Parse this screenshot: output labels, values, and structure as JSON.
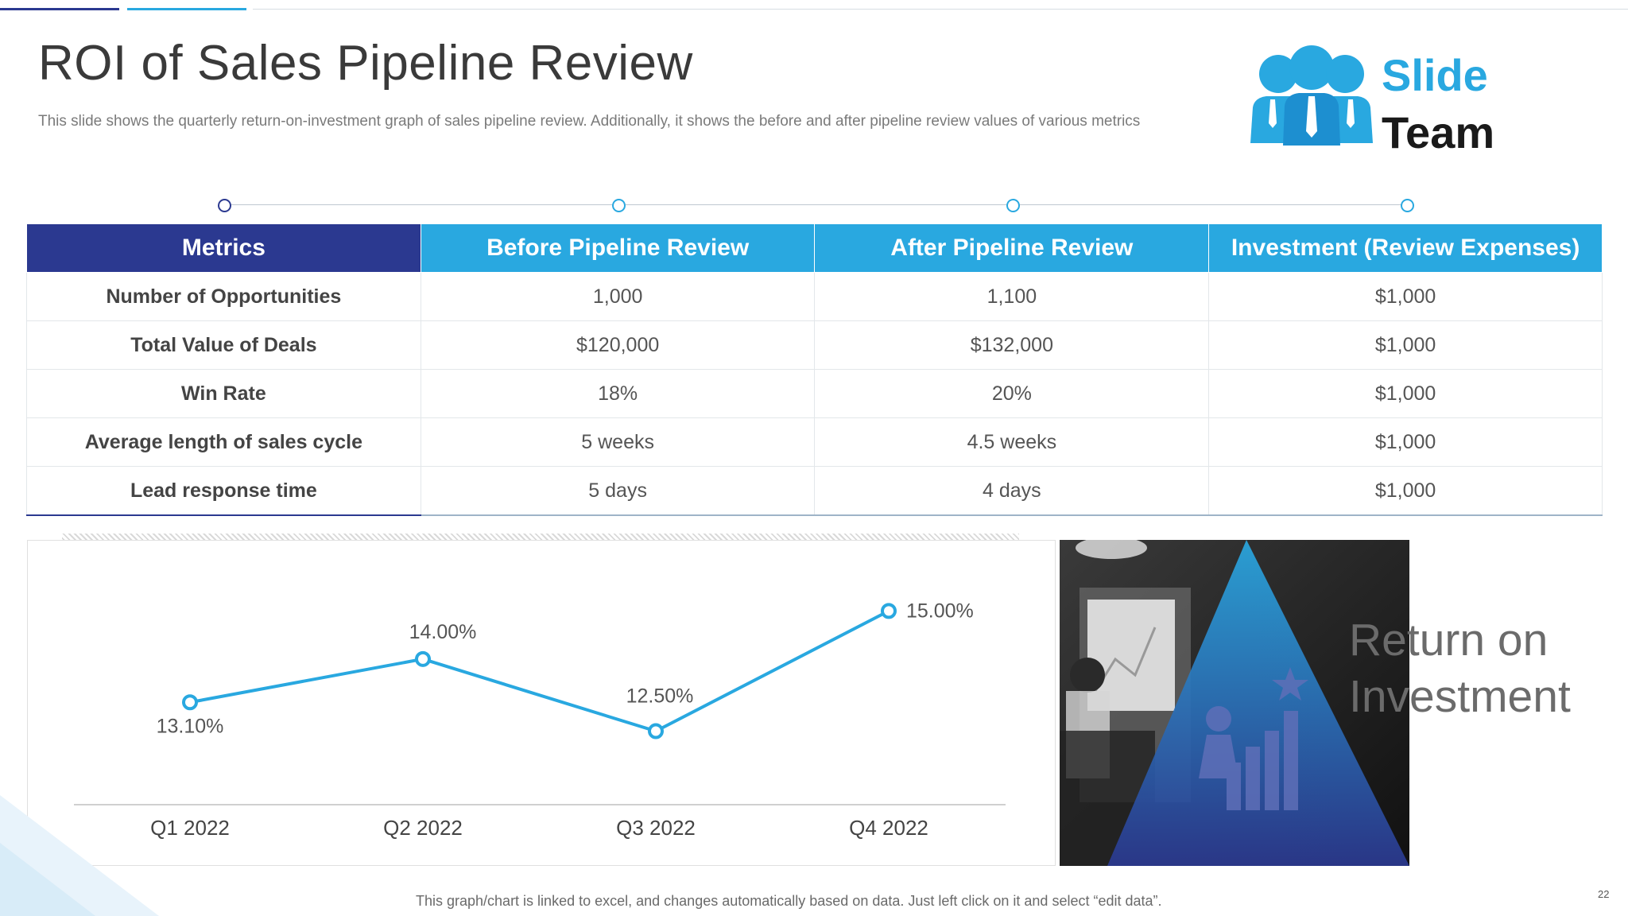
{
  "slide": {
    "title": "ROI of Sales Pipeline Review",
    "subtitle": "This slide shows the quarterly return-on-investment graph of sales pipeline review. Additionally, it shows the before and after pipeline review values of various metrics",
    "footer": "This graph/chart is linked to excel, and changes automatically based on data. Just left click on it and select “edit data”.",
    "page_number": "22"
  },
  "logo": {
    "line1": "Slide",
    "line2": "Team"
  },
  "table": {
    "headers": [
      "Metrics",
      "Before Pipeline Review",
      "After Pipeline Review",
      "Investment (Review Expenses)"
    ],
    "rows": [
      [
        "Number of Opportunities",
        "1,000",
        "1,100",
        "$1,000"
      ],
      [
        "Total Value of Deals",
        "$120,000",
        "$132,000",
        "$1,000"
      ],
      [
        "Win Rate",
        "18%",
        "20%",
        "$1,000"
      ],
      [
        "Average length of sales cycle",
        "5 weeks",
        "4.5 weeks",
        "$1,000"
      ],
      [
        "Lead response time",
        "5 days",
        "4 days",
        "$1,000"
      ]
    ]
  },
  "chart_data": {
    "type": "line",
    "categories": [
      "Q1 2022",
      "Q2 2022",
      "Q3 2022",
      "Q4 2022"
    ],
    "values": [
      13.1,
      14.0,
      12.5,
      15.0
    ],
    "data_labels": [
      "13.10%",
      "14.00%",
      "12.50%",
      "15.00%"
    ],
    "title": "",
    "xlabel": "",
    "ylabel": "",
    "grid": false,
    "line_color": "#29a8e0"
  },
  "image_panel": {
    "label_line1": "Return on",
    "label_line2": "Investment"
  },
  "colors": {
    "primary_dark": "#2b3990",
    "primary_light": "#29a8e0"
  }
}
